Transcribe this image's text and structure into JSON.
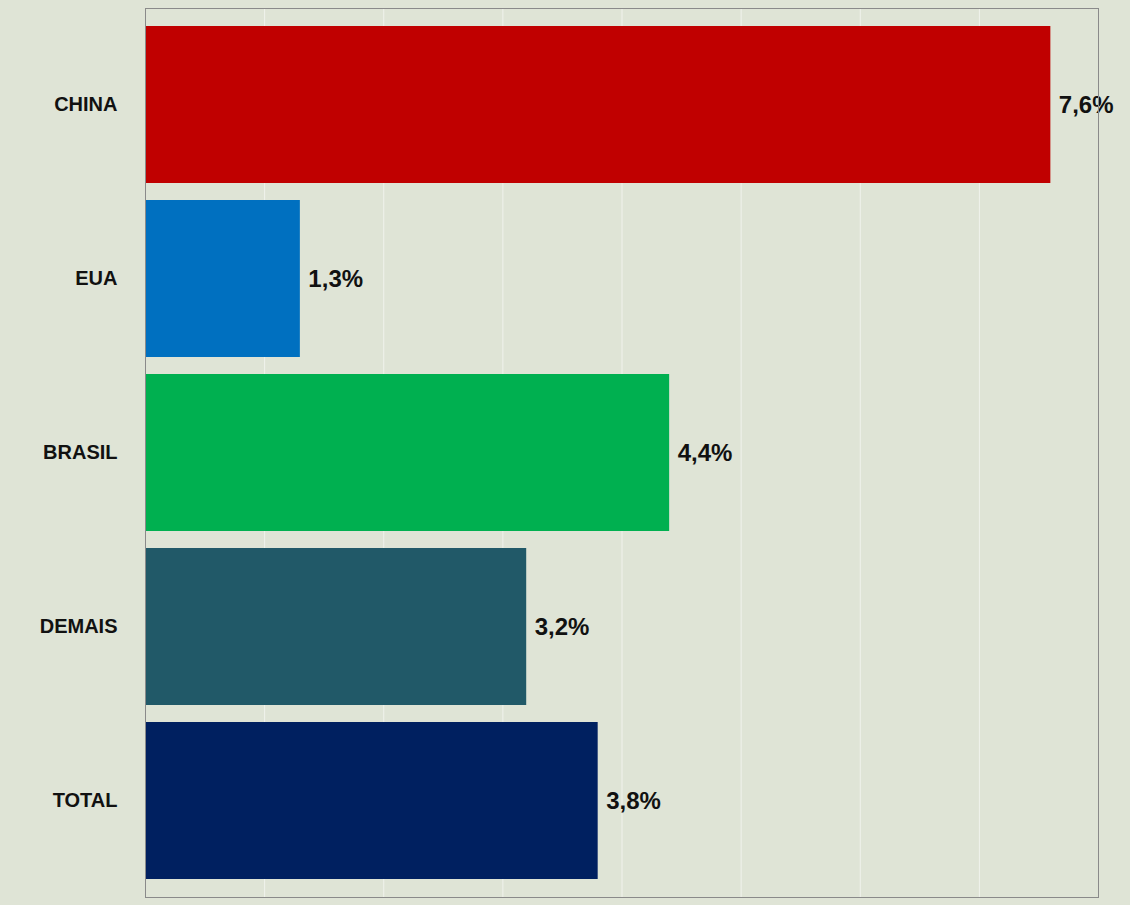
{
  "chart_data": {
    "type": "bar",
    "orientation": "horizontal",
    "categories": [
      "CHINA",
      "EUA",
      "BRASIL",
      "DEMAIS",
      "TOTAL"
    ],
    "values": [
      7.6,
      1.3,
      4.4,
      3.2,
      3.8
    ],
    "value_labels": [
      "7,6%",
      "1,3%",
      "4,4%",
      "3,2%",
      "3,8%"
    ],
    "colors": [
      "#c00000",
      "#0070c0",
      "#00b050",
      "#215968",
      "#002060"
    ],
    "xlim": [
      0,
      8
    ],
    "xticks": [
      0,
      1,
      2,
      3,
      4,
      5,
      6,
      7,
      8
    ],
    "grid": true,
    "data_labels": true,
    "tick_labels": "y"
  }
}
